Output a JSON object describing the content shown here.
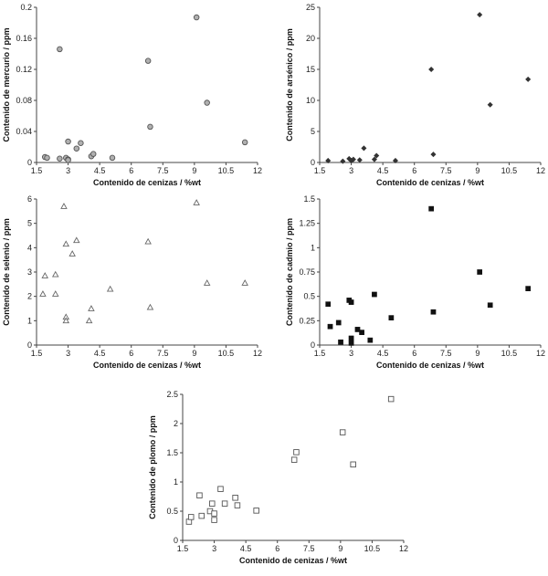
{
  "chart_data": [
    {
      "type": "scatter",
      "xlabel": "Contenido de cenizas / %wt",
      "ylabel": "Contenido de mercurio / ppm",
      "xlim": [
        1.5,
        12
      ],
      "ylim": [
        0,
        0.2
      ],
      "xticks": [
        "1.5",
        "3",
        "4.5",
        "6",
        "7.5",
        "9",
        "10.5",
        "12"
      ],
      "yticks": [
        "0",
        "0.04",
        "0.08",
        "0.12",
        "0.16",
        "0.2"
      ],
      "marker": "circle",
      "grid": false,
      "points": [
        {
          "x": 1.9,
          "y": 0.007
        },
        {
          "x": 2.0,
          "y": 0.006
        },
        {
          "x": 2.6,
          "y": 0.146
        },
        {
          "x": 2.6,
          "y": 0.005
        },
        {
          "x": 2.9,
          "y": 0.006
        },
        {
          "x": 3.0,
          "y": 0.004
        },
        {
          "x": 3.0,
          "y": 0.003
        },
        {
          "x": 3.0,
          "y": 0.027
        },
        {
          "x": 3.4,
          "y": 0.018
        },
        {
          "x": 3.6,
          "y": 0.025
        },
        {
          "x": 4.1,
          "y": 0.008
        },
        {
          "x": 4.2,
          "y": 0.011
        },
        {
          "x": 5.1,
          "y": 0.006
        },
        {
          "x": 6.8,
          "y": 0.131
        },
        {
          "x": 6.9,
          "y": 0.046
        },
        {
          "x": 9.1,
          "y": 0.187
        },
        {
          "x": 9.6,
          "y": 0.077
        },
        {
          "x": 11.4,
          "y": 0.026
        }
      ]
    },
    {
      "type": "scatter",
      "xlabel": "Contenido de cenizas / %wt",
      "ylabel": "Contenido de arsénico / ppm",
      "xlim": [
        1.5,
        12
      ],
      "ylim": [
        0,
        25
      ],
      "xticks": [
        "1.5",
        "3",
        "4.5",
        "6",
        "7.5",
        "9",
        "10.5",
        "12"
      ],
      "yticks": [
        "0",
        "5",
        "10",
        "15",
        "20",
        "25"
      ],
      "marker": "diamond",
      "grid": false,
      "points": [
        {
          "x": 1.9,
          "y": 0.3
        },
        {
          "x": 2.6,
          "y": 0.2
        },
        {
          "x": 2.9,
          "y": 0.6
        },
        {
          "x": 3.0,
          "y": 0.3
        },
        {
          "x": 3.1,
          "y": 0.5
        },
        {
          "x": 3.4,
          "y": 0.4
        },
        {
          "x": 3.6,
          "y": 2.3
        },
        {
          "x": 4.1,
          "y": 0.5
        },
        {
          "x": 4.2,
          "y": 1.1
        },
        {
          "x": 5.1,
          "y": 0.3
        },
        {
          "x": 6.8,
          "y": 15.0
        },
        {
          "x": 6.9,
          "y": 1.3
        },
        {
          "x": 9.1,
          "y": 23.8
        },
        {
          "x": 9.6,
          "y": 9.3
        },
        {
          "x": 11.4,
          "y": 13.4
        }
      ]
    },
    {
      "type": "scatter",
      "xlabel": "Contenido de cenizas / %wt",
      "ylabel": "Contenido de selenio / ppm",
      "xlim": [
        1.5,
        12
      ],
      "ylim": [
        0,
        6
      ],
      "xticks": [
        "1.5",
        "3",
        "4.5",
        "6",
        "7.5",
        "9",
        "10.5",
        "12"
      ],
      "yticks": [
        "0",
        "1",
        "2",
        "3",
        "4",
        "5",
        "6"
      ],
      "marker": "triangle",
      "grid": false,
      "points": [
        {
          "x": 1.8,
          "y": 2.1
        },
        {
          "x": 1.9,
          "y": 2.85
        },
        {
          "x": 2.4,
          "y": 2.1
        },
        {
          "x": 2.4,
          "y": 2.9
        },
        {
          "x": 2.8,
          "y": 5.7
        },
        {
          "x": 2.9,
          "y": 4.15
        },
        {
          "x": 2.9,
          "y": 1.15
        },
        {
          "x": 2.9,
          "y": 1.0
        },
        {
          "x": 3.2,
          "y": 3.75
        },
        {
          "x": 3.4,
          "y": 4.3
        },
        {
          "x": 4.0,
          "y": 1.0
        },
        {
          "x": 4.1,
          "y": 1.5
        },
        {
          "x": 5.0,
          "y": 2.3
        },
        {
          "x": 6.8,
          "y": 4.25
        },
        {
          "x": 6.9,
          "y": 1.55
        },
        {
          "x": 9.1,
          "y": 5.85
        },
        {
          "x": 9.6,
          "y": 2.55
        },
        {
          "x": 11.4,
          "y": 2.55
        }
      ]
    },
    {
      "type": "scatter",
      "xlabel": "Contenido de cenizas / %wt",
      "ylabel": "Contenido de cadmio / ppm",
      "xlim": [
        1.5,
        12
      ],
      "ylim": [
        0,
        1.5
      ],
      "xticks": [
        "1.5",
        "3",
        "4.5",
        "6",
        "7.5",
        "9",
        "10.5",
        "12"
      ],
      "yticks": [
        "0",
        "0.25",
        "0.5",
        "0.75",
        "1",
        "1.25",
        "1.5"
      ],
      "marker": "square-filled",
      "grid": false,
      "points": [
        {
          "x": 1.9,
          "y": 0.42
        },
        {
          "x": 2.0,
          "y": 0.19
        },
        {
          "x": 2.4,
          "y": 0.23
        },
        {
          "x": 2.5,
          "y": 0.03
        },
        {
          "x": 2.9,
          "y": 0.46
        },
        {
          "x": 3.0,
          "y": 0.44
        },
        {
          "x": 3.0,
          "y": 0.07
        },
        {
          "x": 3.0,
          "y": 0.02
        },
        {
          "x": 3.3,
          "y": 0.16
        },
        {
          "x": 3.5,
          "y": 0.13
        },
        {
          "x": 3.9,
          "y": 0.05
        },
        {
          "x": 4.1,
          "y": 0.52
        },
        {
          "x": 4.9,
          "y": 0.28
        },
        {
          "x": 6.8,
          "y": 1.4
        },
        {
          "x": 6.9,
          "y": 0.34
        },
        {
          "x": 9.1,
          "y": 0.75
        },
        {
          "x": 9.6,
          "y": 0.41
        },
        {
          "x": 11.4,
          "y": 0.58
        }
      ]
    },
    {
      "type": "scatter",
      "xlabel": "Contenido de cenizas / %wt",
      "ylabel": "Contenido de plomo / ppm",
      "xlim": [
        1.5,
        12
      ],
      "ylim": [
        0,
        2.5
      ],
      "xticks": [
        "1.5",
        "3",
        "4.5",
        "6",
        "7.5",
        "9",
        "10.5",
        "12"
      ],
      "yticks": [
        "0",
        "0.5",
        "1",
        "1.5",
        "2",
        "2.5"
      ],
      "marker": "square-open",
      "grid": false,
      "points": [
        {
          "x": 1.8,
          "y": 0.32
        },
        {
          "x": 1.9,
          "y": 0.4
        },
        {
          "x": 2.3,
          "y": 0.77
        },
        {
          "x": 2.4,
          "y": 0.42
        },
        {
          "x": 2.8,
          "y": 0.5
        },
        {
          "x": 2.9,
          "y": 0.63
        },
        {
          "x": 3.0,
          "y": 0.46
        },
        {
          "x": 3.0,
          "y": 0.35
        },
        {
          "x": 3.3,
          "y": 0.88
        },
        {
          "x": 3.5,
          "y": 0.63
        },
        {
          "x": 4.0,
          "y": 0.73
        },
        {
          "x": 4.1,
          "y": 0.6
        },
        {
          "x": 5.0,
          "y": 0.51
        },
        {
          "x": 6.8,
          "y": 1.38
        },
        {
          "x": 6.9,
          "y": 1.51
        },
        {
          "x": 9.1,
          "y": 1.85
        },
        {
          "x": 9.6,
          "y": 1.3
        },
        {
          "x": 11.4,
          "y": 2.42
        }
      ]
    }
  ]
}
